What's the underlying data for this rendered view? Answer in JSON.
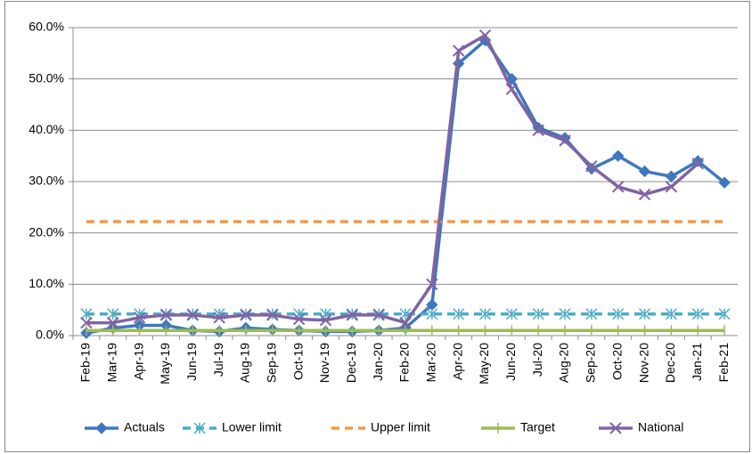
{
  "chart_data": {
    "type": "line",
    "categories": [
      "Feb-19",
      "Mar-19",
      "Apr-19",
      "May-19",
      "Jun-19",
      "Jul-19",
      "Aug-19",
      "Sep-19",
      "Oct-19",
      "Nov-19",
      "Dec-19",
      "Jan-20",
      "Feb-20",
      "Mar-20",
      "Apr-20",
      "May-20",
      "Jun-20",
      "Jul-20",
      "Aug-20",
      "Sep-20",
      "Oct-20",
      "Nov-20",
      "Dec-20",
      "Jan-21",
      "Feb-21"
    ],
    "series": [
      {
        "name": "Actuals",
        "color": "#3f77bf",
        "marker": "diamond",
        "dash": false,
        "values": [
          0.5,
          1.5,
          2,
          2,
          1,
          0.8,
          1.5,
          1.2,
          1,
          0.8,
          0.8,
          1,
          1.5,
          6,
          53,
          57.5,
          50,
          40.5,
          38.5,
          32.5,
          35,
          32,
          31,
          34,
          29.8
        ]
      },
      {
        "name": "Lower limit",
        "color": "#4bacc6",
        "marker": "asterisk",
        "dash": true,
        "values": [
          4.2,
          4.2,
          4.2,
          4.2,
          4.2,
          4.2,
          4.2,
          4.2,
          4.2,
          4.2,
          4.2,
          4.2,
          4.2,
          4.2,
          4.2,
          4.2,
          4.2,
          4.2,
          4.2,
          4.2,
          4.2,
          4.2,
          4.2,
          4.2,
          4.2
        ]
      },
      {
        "name": "Upper limit",
        "color": "#f79646",
        "marker": "none",
        "dash": true,
        "values": [
          22.2,
          22.2,
          22.2,
          22.2,
          22.2,
          22.2,
          22.2,
          22.2,
          22.2,
          22.2,
          22.2,
          22.2,
          22.2,
          22.2,
          22.2,
          22.2,
          22.2,
          22.2,
          22.2,
          22.2,
          22.2,
          22.2,
          22.2,
          22.2,
          22.2
        ]
      },
      {
        "name": "Target",
        "color": "#9bbb59",
        "marker": "plus",
        "dash": false,
        "values": [
          1,
          1,
          1,
          1,
          1,
          1,
          1,
          1,
          1,
          1,
          1,
          1,
          1,
          1,
          1,
          1,
          1,
          1,
          1,
          1,
          1,
          1,
          1,
          1,
          1
        ]
      },
      {
        "name": "National",
        "color": "#8064a2",
        "marker": "cross",
        "dash": false,
        "values": [
          2.5,
          2.5,
          3.5,
          4,
          4,
          3.5,
          4,
          4,
          3.2,
          3,
          4,
          4,
          2.5,
          10,
          55.5,
          58.5,
          48,
          40,
          38,
          33,
          29,
          27.5,
          29,
          33.5,
          null
        ]
      }
    ],
    "ylim": [
      0,
      60
    ],
    "yticks": [
      {
        "value": 0,
        "label": "0.0%"
      },
      {
        "value": 10,
        "label": "10.0%"
      },
      {
        "value": 20,
        "label": "20.0%"
      },
      {
        "value": 30,
        "label": "30.0%"
      },
      {
        "value": 40,
        "label": "40.0%"
      },
      {
        "value": 50,
        "label": "50.0%"
      },
      {
        "value": 60,
        "label": "60.0%"
      }
    ],
    "grid": true,
    "legend": "bottom"
  }
}
